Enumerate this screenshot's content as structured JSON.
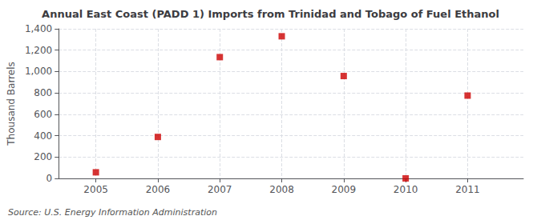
{
  "chart_data": {
    "type": "scatter",
    "title": "Annual East Coast (PADD 1) Imports from Trinidad and Tobago of Fuel Ethanol",
    "ylabel": "Thousand Barrels",
    "annotations": [
      "Source: U.S. Energy Information Administration"
    ],
    "x": [
      2005,
      2006,
      2007,
      2008,
      2009,
      2010,
      2011
    ],
    "values": [
      57,
      388,
      1135,
      1330,
      958,
      0,
      775
    ],
    "color": "#cc0000",
    "marker": "square",
    "xlim": [
      2004.4,
      2011.9
    ],
    "xticks": [
      2005,
      2006,
      2007,
      2008,
      2009,
      2010,
      2011
    ],
    "ylim": [
      0,
      1400
    ],
    "yticks": [
      0,
      200,
      400,
      600,
      800,
      {
        "value": 1000,
        "label": "1,000"
      },
      {
        "value": 1200,
        "label": "1,200"
      },
      {
        "value": 1400,
        "label": "1,400"
      }
    ],
    "grid": true
  }
}
